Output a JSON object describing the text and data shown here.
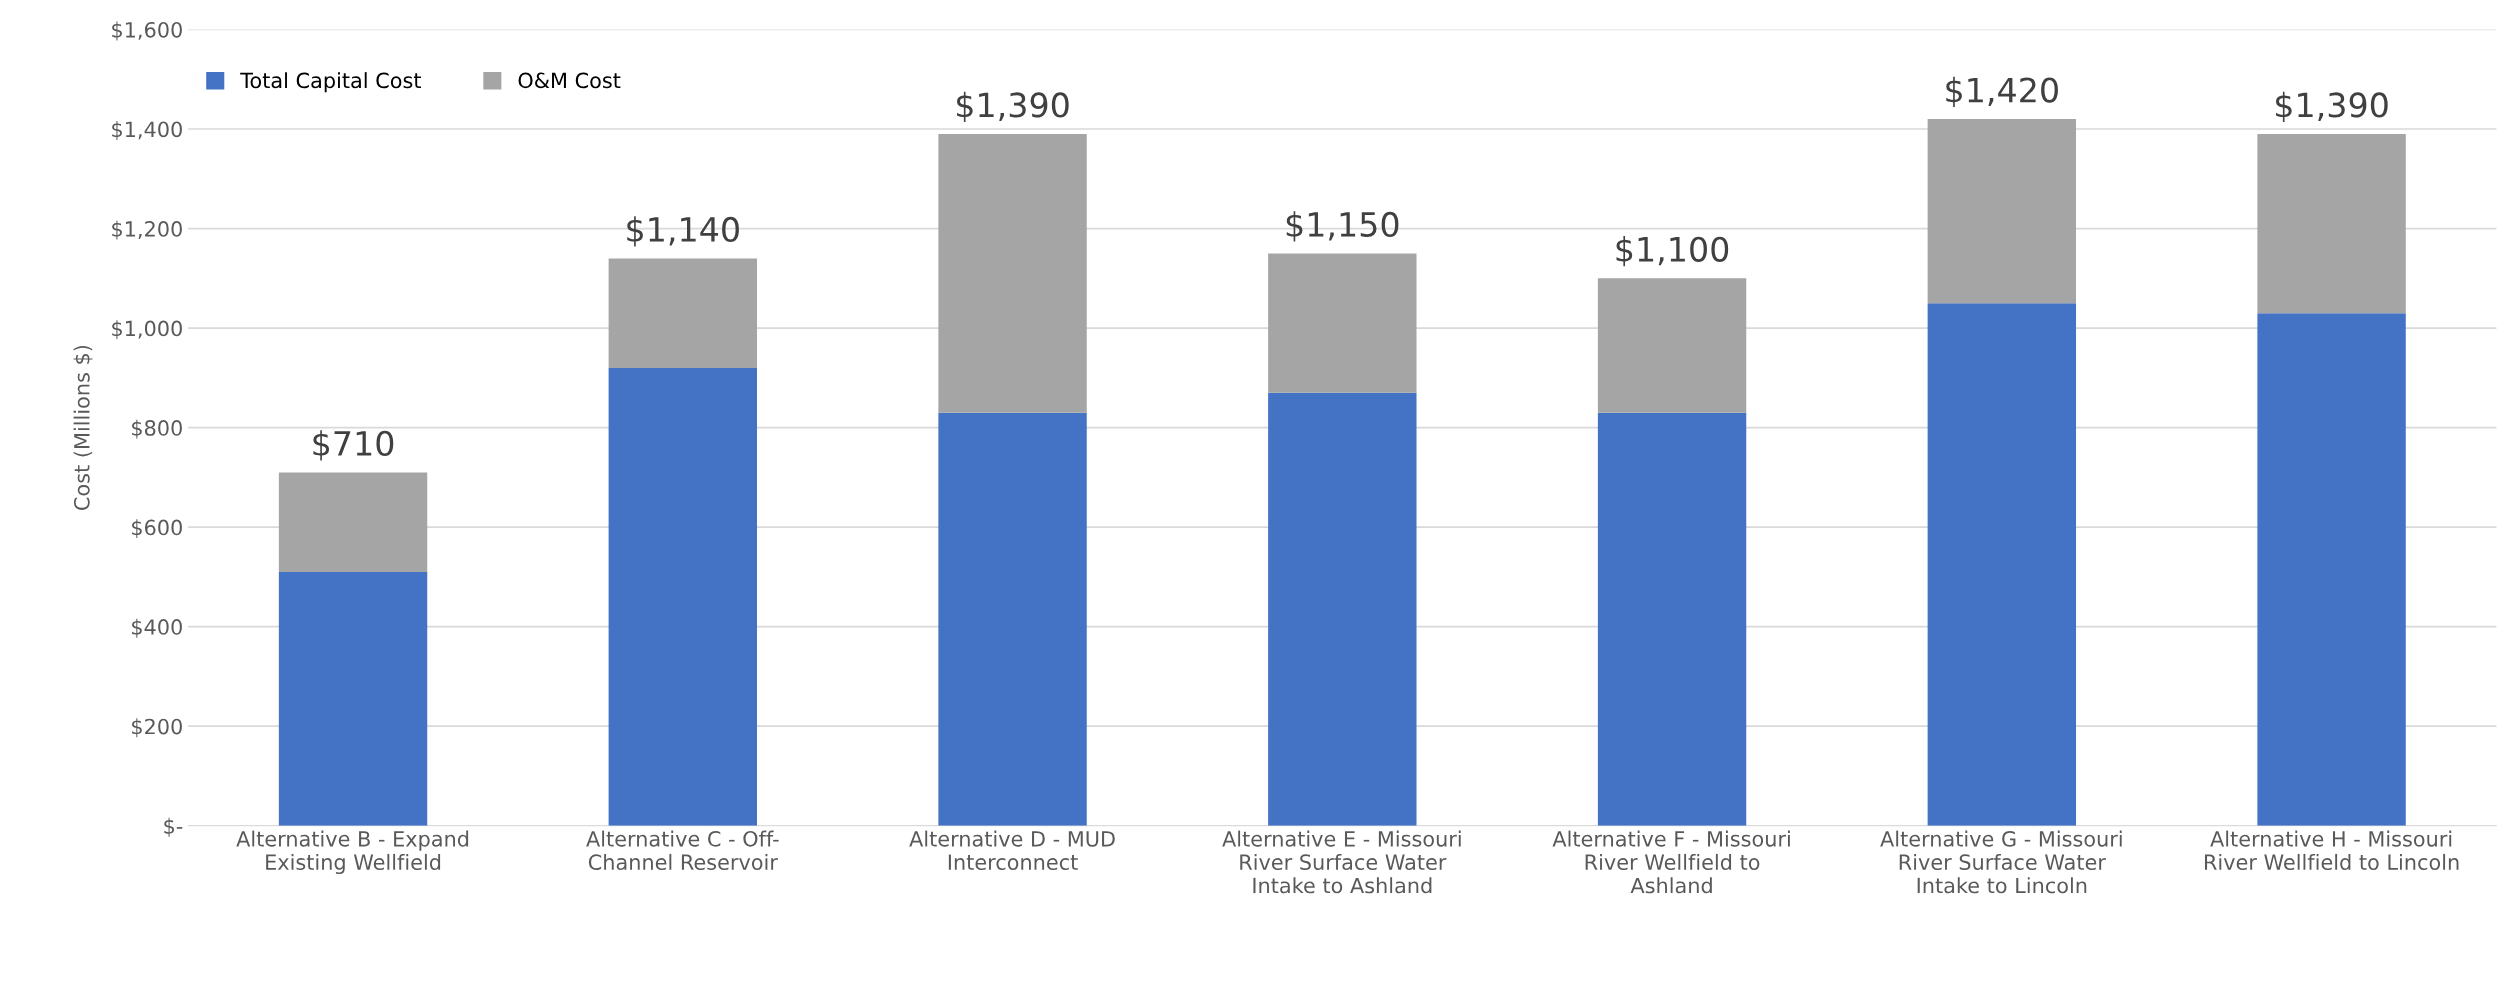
{
  "chart_data": {
    "type": "bar",
    "stacked": true,
    "ylabel": "Cost (Millions $)",
    "categories": [
      "Alternative B - Expand\nExisting Wellfield",
      "Alternative C - Off-\nChannel Reservoir",
      "Alternative D - MUD\nInterconnect",
      "Alternative E - Missouri\nRiver Surface Water\nIntake to Ashland",
      "Alternative F - Missouri\nRiver Wellfield to\nAshland",
      "Alternative G - Missouri\nRiver Surface Water\nIntake to Lincoln",
      "Alternative H - Missouri\nRiver Wellfield to Lincoln"
    ],
    "series": [
      {
        "name": "Total Capital Cost",
        "color": "#4472c4",
        "values": [
          510,
          920,
          830,
          870,
          830,
          1050,
          1030
        ]
      },
      {
        "name": "O&M Cost",
        "color": "#a5a5a5",
        "values": [
          200,
          220,
          560,
          280,
          270,
          370,
          360
        ]
      }
    ],
    "totals": [
      "$710",
      "$1,140",
      "$1,390",
      "$1,150",
      "$1,100",
      "$1,420",
      "$1,390"
    ],
    "ylim": [
      0,
      1600
    ],
    "yticks": [
      {
        "value": 0,
        "label": "$-"
      },
      {
        "value": 200,
        "label": "$200"
      },
      {
        "value": 400,
        "label": "$400"
      },
      {
        "value": 600,
        "label": "$600"
      },
      {
        "value": 800,
        "label": "$800"
      },
      {
        "value": 1000,
        "label": "$1,000"
      },
      {
        "value": 1200,
        "label": "$1,200"
      },
      {
        "value": 1400,
        "label": "$1,400"
      },
      {
        "value": 1600,
        "label": "$1,600"
      }
    ],
    "grid": "y",
    "legend": "top left"
  }
}
